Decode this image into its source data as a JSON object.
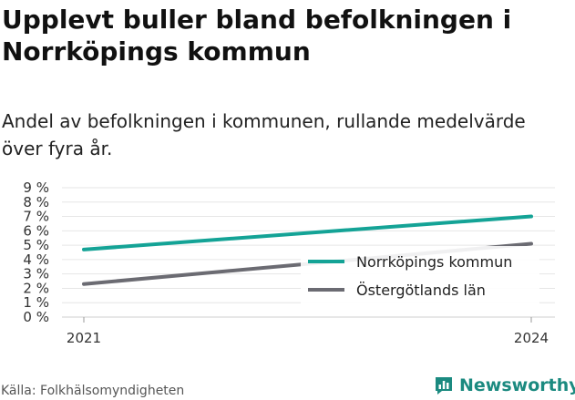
{
  "header": {
    "title": "Upplevt buller bland befolkningen i Norrköpings kommun",
    "subtitle": "Andel av befolkningen i kommunen, rullande medelvärde över fyra år."
  },
  "footer": {
    "source": "Källa: Folkhälsomyndigheten",
    "brand": "Newsworthy",
    "brand_icon": "bar-chart-speech-bubble-icon"
  },
  "colors": {
    "norrkoping": "#14a396",
    "ostergotland": "#6b6b72",
    "grid": "#e6e6e6",
    "brand": "#1b8a80"
  },
  "chart_data": {
    "type": "line",
    "x": [
      "2021",
      "2024"
    ],
    "series": [
      {
        "name": "Norrköpings kommun",
        "values": [
          4.7,
          7.0
        ]
      },
      {
        "name": "Östergötlands län",
        "values": [
          2.3,
          5.1
        ]
      }
    ],
    "y_ticks": [
      "0 %",
      "1 %",
      "2 %",
      "3 %",
      "4 %",
      "5 %",
      "6 %",
      "7 %",
      "8 %",
      "9 %"
    ],
    "ylim": [
      0,
      9
    ],
    "grid": true,
    "legend_position": "bottom-right"
  }
}
